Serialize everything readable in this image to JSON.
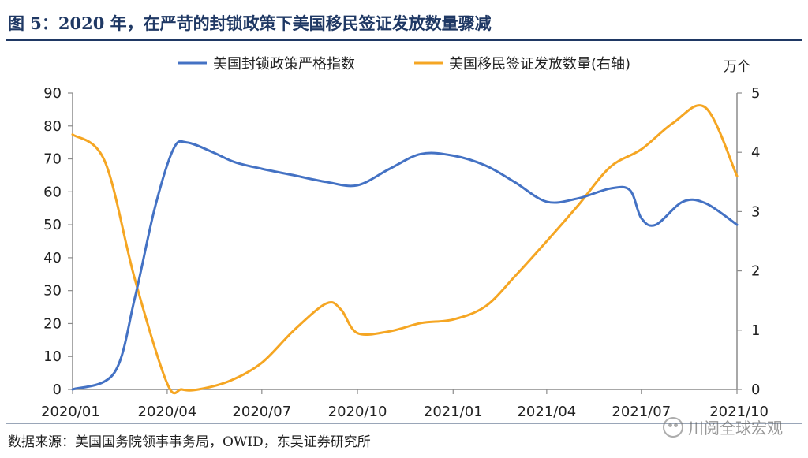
{
  "title": "图 5：2020 年，在严苛的封锁政策下美国移民签证发放数量骤减",
  "source": "数据来源：美国国务院领事事务局，OWID，东吴证券研究所",
  "watermark": "川阅全球宏观",
  "chart_data": {
    "type": "line",
    "title": "图 5：2020 年，在严苛的封锁政策下美国移民签证发放数量骤减",
    "y2_unit": "万个",
    "x_ticks": [
      "2020/01",
      "2020/04",
      "2020/07",
      "2020/10",
      "2021/01",
      "2021/04",
      "2021/07",
      "2021/10"
    ],
    "ylim": [
      0,
      90
    ],
    "yticks": [
      0,
      10,
      20,
      30,
      40,
      50,
      60,
      70,
      80,
      90
    ],
    "y2lim": [
      0,
      5
    ],
    "y2ticks": [
      0,
      1,
      2,
      3,
      4,
      5
    ],
    "legend_position": "top",
    "grid": false,
    "series": [
      {
        "name": "美国封锁政策严格指数",
        "axis": "left",
        "color": "#4472c4",
        "x": [
          "2020-01-01",
          "2020-02-10",
          "2020-03-01",
          "2020-03-20",
          "2020-04-07",
          "2020-04-20",
          "2020-05-15",
          "2020-06-05",
          "2020-07-01",
          "2020-08-01",
          "2020-09-01",
          "2020-10-01",
          "2020-11-01",
          "2020-12-01",
          "2021-01-01",
          "2021-02-01",
          "2021-03-01",
          "2021-04-01",
          "2021-05-01",
          "2021-06-01",
          "2021-06-20",
          "2021-07-01",
          "2021-07-15",
          "2021-08-10",
          "2021-09-01",
          "2021-10-01"
        ],
        "values": [
          0,
          5,
          28,
          55,
          73,
          75,
          72,
          69,
          67,
          65,
          63,
          62,
          67,
          71.5,
          71,
          68,
          63,
          57,
          58,
          61,
          60.5,
          52,
          50,
          57,
          56.5,
          50
        ]
      },
      {
        "name": "美国移民签证发放数量(右轴)",
        "axis": "right",
        "color": "#f5a623",
        "x": [
          "2020-01-01",
          "2020-02-01",
          "2020-03-01",
          "2020-04-01",
          "2020-04-15",
          "2020-05-01",
          "2020-06-01",
          "2020-07-01",
          "2020-08-01",
          "2020-09-01",
          "2020-09-15",
          "2020-10-01",
          "2020-11-01",
          "2020-12-01",
          "2021-01-01",
          "2021-02-01",
          "2021-03-01",
          "2021-04-01",
          "2021-05-01",
          "2021-06-01",
          "2021-07-01",
          "2021-08-01",
          "2021-09-01",
          "2021-10-01"
        ],
        "values": [
          4.3,
          3.85,
          1.85,
          0.1,
          0.0,
          0.0,
          0.15,
          0.45,
          1.0,
          1.45,
          1.35,
          0.95,
          0.98,
          1.12,
          1.18,
          1.4,
          1.9,
          2.5,
          3.1,
          3.75,
          4.05,
          4.5,
          4.75,
          3.6
        ]
      }
    ]
  }
}
